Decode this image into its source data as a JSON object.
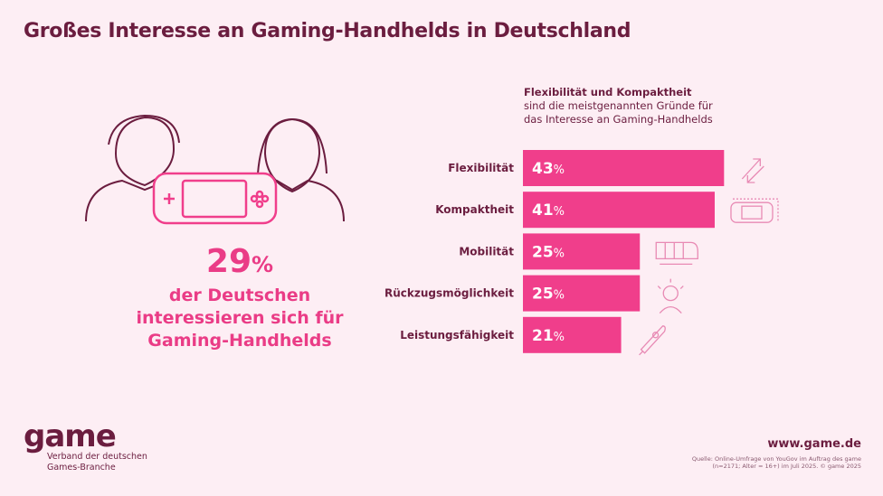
{
  "title": "Großes Interesse an Gaming-Handhelds in Deutschland",
  "headline": {
    "percent": "29",
    "percent_sign": "%",
    "line1": "der Deutschen",
    "line2": "interessieren sich für",
    "line3": "Gaming-Handhelds"
  },
  "chart_data": {
    "type": "bar",
    "orientation": "horizontal",
    "title_bold": "Flexibilität und Kompaktheit",
    "title": "sind die meistgenannten Gründe für das Interesse an Gaming-Handhelds",
    "categories": [
      "Flexibilität",
      "Kompaktheit",
      "Mobilität",
      "Rückzugsmöglichkeit",
      "Leistungsfähigkeit"
    ],
    "values": [
      43,
      41,
      25,
      25,
      21
    ],
    "unit": "%",
    "icons": [
      "arrows-icon",
      "handheld-icon",
      "train-icon",
      "person-icon",
      "rocket-icon"
    ],
    "color": "#f03e8b"
  },
  "footer": {
    "logo": "game",
    "logo_sub1": "Verband der deutschen",
    "logo_sub2": "Games-Branche",
    "url": "www.game.de",
    "source1": "Quelle: Online-Umfrage von YouGov im Auftrag des game",
    "source2": "(n=2171; Alter = 16+) im Juli 2025. © game 2025"
  }
}
